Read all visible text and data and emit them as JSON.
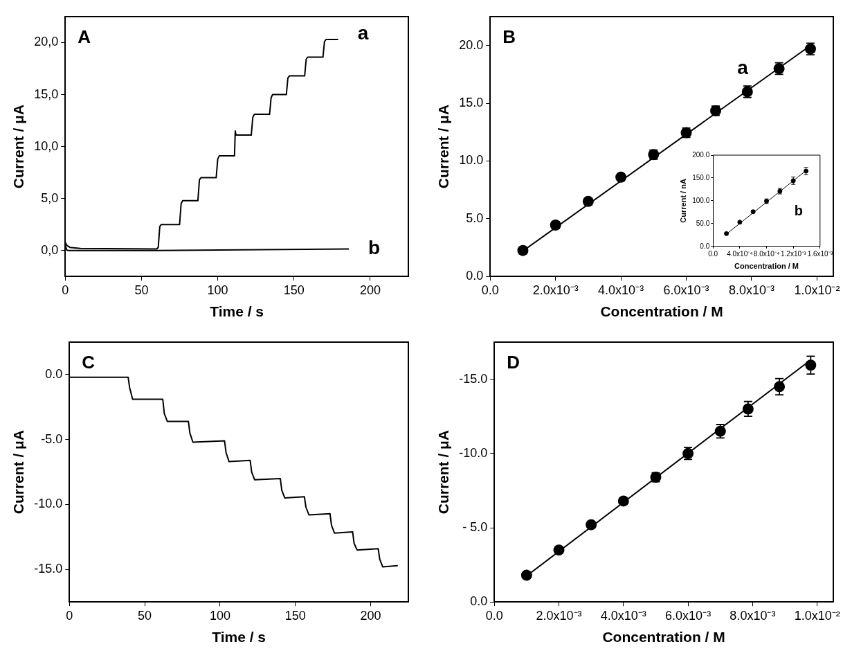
{
  "chart_data": [
    {
      "type": "line",
      "title": "A",
      "xlabel": "Time / s",
      "ylabel": "Current / μA",
      "xlim": [
        0,
        225
      ],
      "ylim": [
        -2.5,
        22.5
      ],
      "xticks": [
        0,
        50,
        100,
        150,
        200
      ],
      "yticks": [
        {
          "value": 0,
          "label": "0,0"
        },
        {
          "value": 5,
          "label": "5,0"
        },
        {
          "value": 10,
          "label": "10,0"
        },
        {
          "value": 15,
          "label": "15,0"
        },
        {
          "value": 20,
          "label": "20,0"
        }
      ],
      "series": [
        {
          "name": "a",
          "color": "#000000",
          "x": [
            0,
            1,
            3,
            10,
            60,
            61,
            62,
            63,
            75,
            76,
            77,
            87,
            88,
            89,
            99,
            100,
            101,
            111,
            111.5,
            112,
            122,
            123,
            124,
            134,
            135,
            136,
            145,
            146,
            147,
            157,
            158,
            159,
            169,
            170,
            171,
            179
          ],
          "values": [
            0.8,
            0.5,
            0.3,
            0.2,
            0.15,
            0.3,
            2.3,
            2.5,
            2.5,
            4.5,
            4.8,
            4.8,
            6.8,
            7.0,
            7.0,
            8.8,
            9.1,
            9.1,
            11.5,
            11.1,
            11.1,
            12.8,
            13.1,
            13.1,
            14.7,
            15.0,
            15.0,
            16.6,
            16.8,
            16.8,
            18.4,
            18.6,
            18.6,
            20.1,
            20.3,
            20.3
          ]
        },
        {
          "name": "b",
          "color": "#000000",
          "x": [
            0,
            1,
            2,
            60,
            186
          ],
          "values": [
            0.5,
            0.05,
            0,
            0,
            0.15
          ]
        }
      ]
    },
    {
      "type": "scatter",
      "title": "B",
      "xlabel": "Concentration / M",
      "ylabel": "Current / μA",
      "xlim": [
        0,
        0.0105
      ],
      "ylim": [
        0,
        22.5
      ],
      "xticks": [
        {
          "value": 0,
          "label": "0.0"
        },
        {
          "value": 0.002,
          "label": "2.0x10⁻³"
        },
        {
          "value": 0.004,
          "label": "4.0x10⁻³"
        },
        {
          "value": 0.006,
          "label": "6.0x10⁻³"
        },
        {
          "value": 0.008,
          "label": "8.0x10⁻³"
        },
        {
          "value": 0.01,
          "label": "1.0x10⁻²"
        }
      ],
      "yticks": [
        {
          "value": 0,
          "label": "0.0"
        },
        {
          "value": 5,
          "label": "5.0"
        },
        {
          "value": 10,
          "label": "10.0"
        },
        {
          "value": 15,
          "label": "15.0"
        },
        {
          "value": 20,
          "label": "20.0"
        }
      ],
      "series": [
        {
          "type": "line",
          "color": "#000000",
          "x": [
            0.001,
            0.0098
          ],
          "values": [
            2.2,
            20.0
          ]
        },
        {
          "name": "a",
          "marker": "circle",
          "color": "#000000",
          "x": [
            0.001,
            0.002,
            0.003,
            0.004,
            0.005,
            0.006,
            0.0069,
            0.00787,
            0.00884,
            0.0098
          ],
          "values": [
            2.25,
            4.45,
            6.5,
            8.6,
            10.55,
            12.45,
            14.35,
            16.0,
            18.0,
            19.7
          ],
          "errors": [
            0.3,
            0.3,
            0.3,
            0.3,
            0.4,
            0.4,
            0.4,
            0.5,
            0.5,
            0.5
          ]
        }
      ]
    },
    {
      "type": "scatter",
      "xlabel": "Concentration / M",
      "ylabel": "Current / nA",
      "xlim": [
        0,
        0.0016
      ],
      "ylim": [
        0,
        200
      ],
      "xticks": [
        {
          "value": 0,
          "label": "0.0"
        },
        {
          "value": 0.0004,
          "label": "4.0x10⁻⁴"
        },
        {
          "value": 0.0008,
          "label": "8.0x10⁻⁴"
        },
        {
          "value": 0.0012,
          "label": "1.2x10⁻³"
        },
        {
          "value": 0.0016,
          "label": "1.6x10⁻³"
        }
      ],
      "yticks": [
        {
          "value": 0,
          "label": "0.0"
        },
        {
          "value": 50,
          "label": "50.0"
        },
        {
          "value": 100,
          "label": "100.0"
        },
        {
          "value": 150,
          "label": "150.0"
        },
        {
          "value": 200,
          "label": "200.0"
        }
      ],
      "series": [
        {
          "type": "line",
          "marker": "none",
          "color": "#000000",
          "x": [
            0.0002,
            0.00139
          ],
          "values": [
            27,
            166
          ]
        },
        {
          "name": "b",
          "marker": "circle",
          "color": "#000000",
          "x": [
            0.0002,
            0.0004,
            0.0006,
            0.0008,
            0.001,
            0.0012,
            0.00139
          ],
          "values": [
            28,
            53,
            76,
            99,
            121,
            144,
            165
          ],
          "errors": [
            null,
            null,
            3,
            5,
            6,
            8,
            8
          ]
        }
      ]
    },
    {
      "type": "line",
      "title": "C",
      "xlabel": "Time / s",
      "ylabel": "Current / μA",
      "xlim": [
        0,
        225
      ],
      "ylim": [
        -17.5,
        2.5
      ],
      "xticks": [
        0,
        50,
        100,
        150,
        200
      ],
      "yticks": [
        {
          "value": 0,
          "label": "0.0"
        },
        {
          "value": -5,
          "label": "-5.0"
        },
        {
          "value": -10,
          "label": "-10.0"
        },
        {
          "value": -15,
          "label": "-15.0"
        }
      ],
      "series": [
        {
          "color": "#000000",
          "x": [
            0,
            39,
            40,
            42,
            62,
            63,
            65,
            79,
            80,
            82,
            103,
            104,
            106,
            120,
            121,
            123,
            140,
            141,
            143,
            156,
            157,
            159,
            173,
            174,
            176,
            188,
            189,
            191,
            205,
            206,
            208,
            218
          ],
          "values": [
            -0.2,
            -0.2,
            -1,
            -1.9,
            -1.9,
            -3,
            -3.6,
            -3.6,
            -4.5,
            -5.2,
            -5.1,
            -6,
            -6.7,
            -6.6,
            -7.5,
            -8.1,
            -8.0,
            -8.9,
            -9.5,
            -9.4,
            -10.2,
            -10.8,
            -10.7,
            -11.6,
            -12.2,
            -12.1,
            -13,
            -13.5,
            -13.4,
            -14.2,
            -14.8,
            -14.7
          ]
        }
      ]
    },
    {
      "type": "scatter",
      "title": "D",
      "xlabel": "Concentration / M",
      "ylabel": "Current / μA",
      "xlim": [
        0,
        0.0105
      ],
      "ylim": [
        0,
        -17.5
      ],
      "xticks": [
        {
          "value": 0,
          "label": "0.0"
        },
        {
          "value": 0.002,
          "label": "2.0x10⁻³"
        },
        {
          "value": 0.004,
          "label": "4.0x10⁻³"
        },
        {
          "value": 0.006,
          "label": "6.0x10⁻³"
        },
        {
          "value": 0.008,
          "label": "8.0x10⁻³"
        },
        {
          "value": 0.01,
          "label": "1.0x10⁻²"
        }
      ],
      "yticks": [
        {
          "value": 0,
          "label": "0.0"
        },
        {
          "value": -5,
          "label": "- 5.0"
        },
        {
          "value": -10,
          "label": "-10.0"
        },
        {
          "value": -15,
          "label": "-15.0"
        }
      ],
      "series": [
        {
          "type": "line",
          "color": "#000000",
          "x": [
            0.001,
            0.0098
          ],
          "values": [
            -1.75,
            -16.3
          ]
        },
        {
          "marker": "circle",
          "color": "#000000",
          "x": [
            0.001,
            0.002,
            0.003,
            0.004,
            0.005,
            0.006,
            0.007,
            0.00786,
            0.00883,
            0.0098
          ],
          "values": [
            -1.8,
            -3.5,
            -5.2,
            -6.8,
            -8.4,
            -10.0,
            -11.5,
            -13.0,
            -14.5,
            -15.95
          ],
          "errors": [
            0.2,
            0.2,
            0.2,
            0.2,
            0.3,
            0.4,
            0.45,
            0.5,
            0.55,
            0.6
          ]
        }
      ]
    }
  ]
}
